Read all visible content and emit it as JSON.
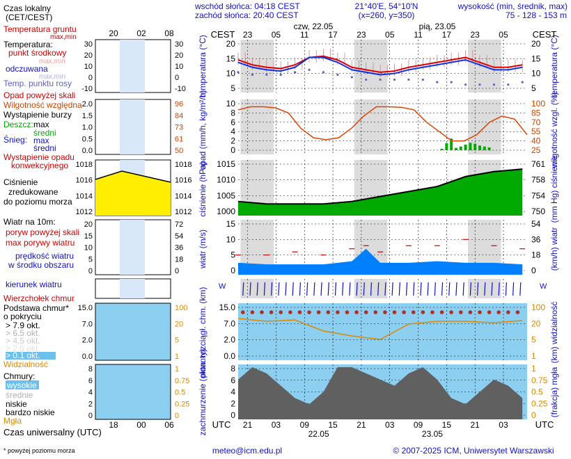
{
  "header": {
    "sunrise": "wschód słońca: 04:18 CEST",
    "sunset": "zachód słońca: 20:40 CEST",
    "coords": "21°40'E, 54°10'N",
    "grid": "(x=260, y=350)",
    "elev_title": "wysokość (min, średnik, max)",
    "elev_values": "75 - 128 - 153 m",
    "day1": "czw, 22.05",
    "day2": "pią, 23.05",
    "tz_top": "CEST",
    "tz_bottom": "UTC"
  },
  "legend": {
    "local_time": "Czas lokalny",
    "local_time2": "(CET/CEST)",
    "soil_temp": "Temperatura gruntu",
    "max_min": "max,min",
    "temperature": "Temperatura:",
    "mid_point": "punkt środkowy",
    "max_min2": "max,min",
    "perceived": "odczuwana",
    "max_min3": "max,min",
    "dew_point": "Temp. punktu rosy",
    "rain_above": "Opad powyżej skali",
    "humidity": "Wilgotność względna",
    "storm": "Wystąpienie burzy",
    "rain": "Deszcz:",
    "snow": "Śnieg:",
    "max": "max",
    "mean": "średni",
    "conv": "Wystąpienie opadu",
    "conv2": "konwekcyjnego",
    "pressure1": "Ciśnienie",
    "pressure2": "zredukowane",
    "pressure3": "do poziomu morza",
    "wind_title": "Wiatr na 10m:",
    "gust_above": "poryw powyżej skali",
    "gust_max": "max porywy wiatru",
    "wind_speed": "prędkość wiatru",
    "wind_area": "w środku obszaru",
    "wind_dir": "kierunek wiatru",
    "cloud_top": "Wierzchołek chmur",
    "cloud_base1": "Podstawa chmur*",
    "cloud_base2": "o pokryciu",
    "okt1": "> 7.9 okt.",
    "okt2": "> 6.5 okt.",
    "okt3": "> 4.5 okt.",
    "okt4": "> 2.5 okt.",
    "okt5": "> 0.1 okt.",
    "visibility": "Widzialność",
    "clouds": "Chmury:",
    "high": "wysokie",
    "middle": "średnie",
    "low": "niskie",
    "very_low": "bardzo niskie",
    "fog": "Mgła",
    "utc": "Czas uniwersalny (UTC)",
    "footnote": "* powyżej poziomu morza"
  },
  "footer": {
    "email": "meteo@icm.edu.pl",
    "copyright": "© 2007-2025 ICM, Uniwersytet Warszawski"
  },
  "axes": {
    "temp_ylabel": "temperatura (°C)",
    "rain_ylabel": "opad (mm/h, kg/m²/h)",
    "hum_ylabel": "wilgotność wzgl. (%)",
    "pres_ylabel": "ciśnienie (hPa)",
    "pres_ylabel_r": "(mm Hg) ciśnienie",
    "wind_ylabel": "wiatr (m/s)",
    "wind_ylabel_r": "(km/h) wiatr",
    "cloud_ylabel": "pion. rozciągł. chm. (km)",
    "vis_ylabel": "(km) widzialność",
    "cover_ylabel": "zachmurzenie (oktanty)",
    "fog_ylabel": "(frakcja) mgła",
    "top_ticks": [
      "23",
      "05",
      "11",
      "17",
      "23",
      "05",
      "11",
      "17",
      "23",
      "05"
    ],
    "bottom_ticks": [
      "21",
      "03",
      "09",
      "15",
      "21",
      "03",
      "09",
      "15",
      "21",
      "03"
    ],
    "bottom_dates": [
      "22.05",
      "23.05"
    ],
    "legend_top_ticks": [
      "20",
      "02",
      "08"
    ],
    "legend_bottom_ticks": [
      "18",
      "00",
      "06"
    ],
    "temp_ticks": [
      "20",
      "15",
      "10",
      "5"
    ],
    "rain_ticks": [
      "10",
      "8",
      "6",
      "4",
      "2",
      "0"
    ],
    "hum_ticks": [
      "100",
      "85",
      "70",
      "55",
      "40",
      "25"
    ],
    "pres_ticks": [
      "1015",
      "1010",
      "1005",
      "1000"
    ],
    "pres_ticks_r": [
      "761",
      "758",
      "754",
      "750"
    ],
    "wind_ticks": [
      "15",
      "10",
      "5",
      "0"
    ],
    "wind_ticks_r": [
      "54",
      "36",
      "18",
      "0"
    ],
    "cloud_ticks": [
      "15.0",
      "7.0",
      "2.0",
      "0.0"
    ],
    "vis_ticks": [
      "100",
      "20",
      "5",
      "1",
      "0"
    ],
    "cover_ticks": [
      "8",
      "6",
      "4",
      "2",
      "0"
    ],
    "fog_ticks": [
      "1",
      "0.75",
      "0.5",
      "0.25",
      "0"
    ],
    "leg_temp_ticks": [
      "30",
      "20",
      "10",
      "0",
      "-10"
    ],
    "leg_hum_ticks": [
      "96",
      "84",
      "73",
      "61",
      "50"
    ],
    "leg_rain_ticks": [
      "2.0",
      "1.5",
      "1.0",
      "0.5",
      "0.0"
    ],
    "leg_pres_ticks": [
      "1018",
      "1016",
      "1014",
      "1012"
    ],
    "leg_wind_ticks": [
      "20",
      "15",
      "10",
      "5",
      "0"
    ],
    "leg_wind_ticks_r": [
      "72",
      "54",
      "36",
      "18",
      "0"
    ],
    "leg_cloud_ticks": [
      "15.0",
      "7.0",
      "2.0",
      "0.0"
    ],
    "leg_vis_ticks": [
      "100",
      "20",
      "5",
      "1",
      "0"
    ],
    "leg_cover_ticks": [
      "8",
      "6",
      "4",
      "2",
      "0"
    ],
    "leg_fog_ticks": [
      "1",
      "0.75",
      "0.5",
      "0.25",
      "0"
    ]
  },
  "chart_data": [
    {
      "type": "line",
      "title": "temperatura",
      "x": [
        0,
        3,
        6,
        9,
        12,
        15,
        18,
        21,
        24,
        27,
        30,
        33,
        36,
        39,
        42,
        45,
        48,
        51,
        54,
        57,
        60
      ],
      "series": [
        {
          "name": "punkt środkowy",
          "values": [
            15,
            13,
            12,
            11.5,
            13,
            16,
            16.5,
            15,
            12,
            11,
            10,
            10.5,
            12,
            13,
            14,
            15,
            16,
            14,
            12,
            12,
            13
          ]
        },
        {
          "name": "odczuwana",
          "values": [
            14,
            12,
            11,
            10.5,
            12,
            16,
            16,
            14,
            11,
            10,
            9,
            9.5,
            11,
            12,
            13,
            14,
            15,
            13,
            11,
            11,
            12
          ]
        },
        {
          "name": "Temp. punktu rosy",
          "values": [
            10,
            9,
            9,
            9,
            10,
            11,
            10,
            9,
            8,
            7,
            7,
            7,
            7,
            7,
            6,
            6,
            5,
            5,
            5,
            5,
            6
          ]
        }
      ],
      "ylim": [
        0,
        22
      ]
    },
    {
      "type": "bar",
      "title": "opad",
      "x": [
        20,
        21,
        22,
        23,
        24,
        25,
        26,
        27,
        28,
        29,
        30
      ],
      "values": [
        0.3,
        1.5,
        2.5,
        0.5,
        0.8,
        1.2,
        1.6,
        1.4,
        1.0,
        0.8,
        0.6
      ],
      "ylim": [
        0,
        10
      ],
      "humidity_series": {
        "name": "wilgotność wzgl.",
        "values": [
          90,
          95,
          95,
          93,
          85,
          60,
          45,
          42,
          45,
          60,
          80,
          95,
          95,
          94,
          90,
          70,
          55,
          40,
          40,
          50,
          70,
          80,
          75,
          50
        ]
      }
    },
    {
      "type": "area",
      "title": "ciśnienie",
      "x": [
        0,
        6,
        12,
        18,
        24,
        30,
        36,
        42,
        48,
        54,
        60
      ],
      "values": [
        1002,
        1001,
        1001,
        1001,
        1002,
        1004,
        1006,
        1008,
        1012,
        1014,
        1015
      ],
      "ylim": [
        998,
        1017
      ]
    },
    {
      "type": "area",
      "title": "wiatr",
      "x": [
        0,
        6,
        12,
        18,
        24,
        27,
        30,
        36,
        42,
        48,
        54,
        60
      ],
      "values": [
        2.5,
        2,
        2,
        2,
        3,
        7,
        2.5,
        2.5,
        3,
        2.5,
        2.5,
        2
      ],
      "gusts": [
        5,
        5,
        6,
        5,
        7,
        8,
        6,
        8,
        8,
        10,
        8,
        7
      ],
      "ylim": [
        0,
        15
      ]
    }
  ],
  "colors": {
    "temp_mid": "#dd0000",
    "perceived": "#1030e0",
    "dew": "#6060c0",
    "humidity": "#dd4400",
    "rain_mean": "#00aa00",
    "pressure": "#00aa00",
    "pressure_hi": "#ffff00",
    "wind": "#0080ff",
    "cloud_bg": "#8ccff0",
    "night": "#dcdcdc"
  }
}
